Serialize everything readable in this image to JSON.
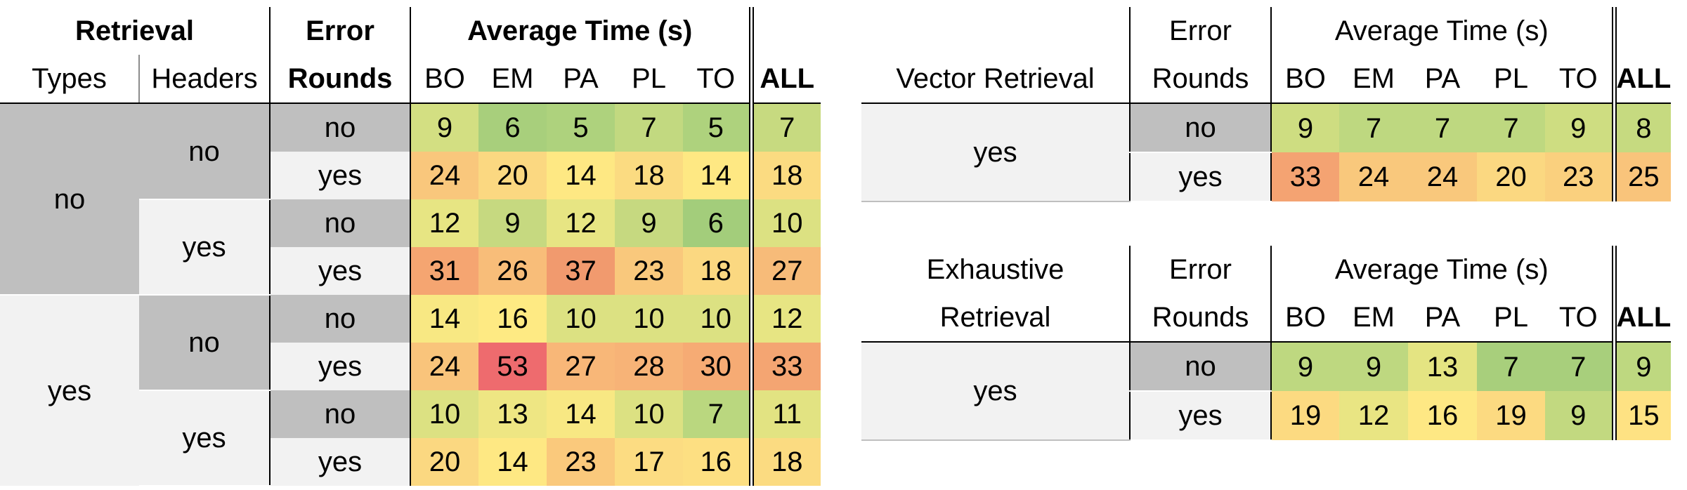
{
  "table1": {
    "header_top": {
      "retrieval": "Retrieval",
      "error": "Error",
      "avg": "Average Time (s)"
    },
    "header_sub": {
      "types": "Types",
      "headers": "Headers",
      "rounds": "Rounds",
      "cols": [
        "BO",
        "EM",
        "PA",
        "PL",
        "TO"
      ],
      "all": "ALL"
    },
    "types": [
      "no",
      "yes"
    ],
    "headers": [
      "no",
      "yes",
      "no",
      "yes"
    ],
    "rows": [
      {
        "err": "no",
        "vals": [
          "9",
          "6",
          "5",
          "7",
          "5"
        ],
        "all": "7",
        "colors": [
          "#d3df82",
          "#a8cf7c",
          "#aed27d",
          "#c2d980",
          "#aed27d"
        ],
        "all_color": "#c7da80"
      },
      {
        "err": "yes",
        "vals": [
          "24",
          "20",
          "14",
          "18",
          "14"
        ],
        "all": "18",
        "colors": [
          "#f9c77c",
          "#fbd881",
          "#fee883",
          "#fbdb81",
          "#fee883"
        ],
        "all_color": "#fbdb81"
      },
      {
        "err": "no",
        "vals": [
          "12",
          "9",
          "12",
          "9",
          "6"
        ],
        "all": "10",
        "colors": [
          "#e7e583",
          "#c6d980",
          "#e7e583",
          "#c6d980",
          "#a3cd7b"
        ],
        "all_color": "#dce182"
      },
      {
        "err": "yes",
        "vals": [
          "31",
          "26",
          "37",
          "23",
          "18"
        ],
        "all": "27",
        "colors": [
          "#f5a571",
          "#f8bd79",
          "#f19a6e",
          "#f9c87c",
          "#fbd881"
        ],
        "all_color": "#f7bb79"
      },
      {
        "err": "no",
        "vals": [
          "14",
          "16",
          "10",
          "10",
          "10"
        ],
        "all": "12",
        "colors": [
          "#f8e883",
          "#feea83",
          "#dce182",
          "#dce182",
          "#dce182"
        ],
        "all_color": "#e7e583"
      },
      {
        "err": "yes",
        "vals": [
          "24",
          "53",
          "27",
          "28",
          "30"
        ],
        "all": "33",
        "colors": [
          "#f9c47b",
          "#ee6b6e",
          "#f8b778",
          "#f7b377",
          "#f6ab74"
        ],
        "all_color": "#f4a572"
      },
      {
        "err": "no",
        "vals": [
          "10",
          "13",
          "14",
          "10",
          "7"
        ],
        "all": "11",
        "colors": [
          "#dce182",
          "#eee683",
          "#f8e883",
          "#dce182",
          "#bad77f"
        ],
        "all_color": "#e2e382"
      },
      {
        "err": "yes",
        "vals": [
          "20",
          "14",
          "23",
          "17",
          "16"
        ],
        "all": "18",
        "colors": [
          "#fbd881",
          "#fee883",
          "#fac97c",
          "#fcdc82",
          "#fddf82"
        ],
        "all_color": "#fbdb81"
      }
    ]
  },
  "table2": {
    "header_top": {
      "error": "Error",
      "avg": "Average Time (s)"
    },
    "header_sub": {
      "label": "Vector Retrieval",
      "rounds": "Rounds",
      "cols": [
        "BO",
        "EM",
        "PA",
        "PL",
        "TO"
      ],
      "all": "ALL"
    },
    "group": "yes",
    "rows": [
      {
        "err": "no",
        "vals": [
          "9",
          "7",
          "7",
          "7",
          "9"
        ],
        "all": "8",
        "colors": [
          "#cedd81",
          "#bed880",
          "#bed880",
          "#bed880",
          "#cedd81"
        ],
        "all_color": "#c6da80"
      },
      {
        "err": "yes",
        "vals": [
          "33",
          "24",
          "24",
          "20",
          "23"
        ],
        "all": "25",
        "colors": [
          "#f4a372",
          "#f9c87c",
          "#f9c87c",
          "#fbd881",
          "#fad07e"
        ],
        "all_color": "#f9c47b"
      }
    ]
  },
  "table3": {
    "header_top": {
      "label": "Exhaustive",
      "error": "Error",
      "avg": "Average Time (s)"
    },
    "header_sub": {
      "label": "Retrieval",
      "rounds": "Rounds",
      "cols": [
        "BO",
        "EM",
        "PA",
        "PL",
        "TO"
      ],
      "all": "ALL"
    },
    "group": "yes",
    "rows": [
      {
        "err": "no",
        "vals": [
          "9",
          "9",
          "13",
          "7",
          "7"
        ],
        "all": "9",
        "colors": [
          "#bed880",
          "#bed880",
          "#e4e482",
          "#a8cf7c",
          "#a8cf7c"
        ],
        "all_color": "#bed880"
      },
      {
        "err": "yes",
        "vals": [
          "19",
          "12",
          "16",
          "19",
          "9"
        ],
        "all": "15",
        "colors": [
          "#fcda81",
          "#e9e583",
          "#fee884",
          "#fcda81",
          "#c2d980"
        ],
        "all_color": "#fee283"
      }
    ]
  }
}
